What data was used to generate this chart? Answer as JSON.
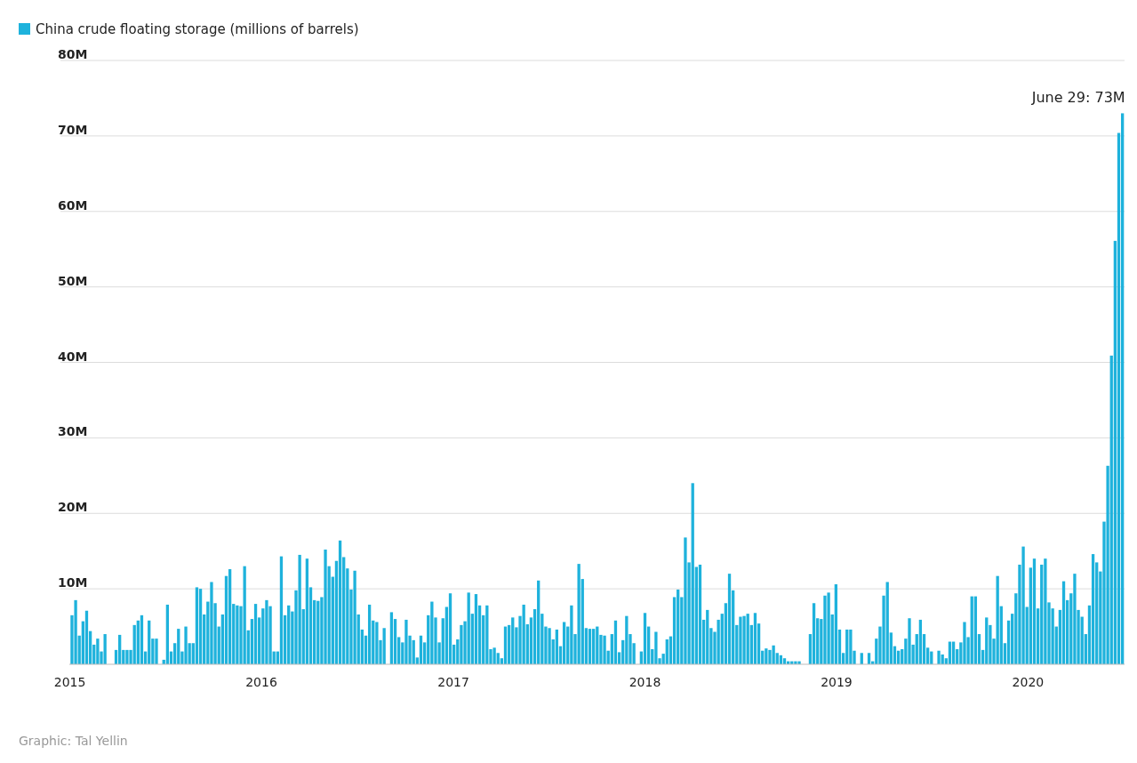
{
  "chart_data": {
    "type": "bar",
    "legend": "top left",
    "grid": "y",
    "x": [
      "2015-01-05",
      "2015-01-12",
      "2015-01-19",
      "2015-01-26",
      "2015-02-02",
      "2015-02-09",
      "2015-02-16",
      "2015-02-23",
      "2015-03-02",
      "2015-03-09",
      "2015-03-16",
      "2015-03-23",
      "2015-03-30",
      "2015-04-06",
      "2015-04-13",
      "2015-04-20",
      "2015-04-27",
      "2015-05-04",
      "2015-05-11",
      "2015-05-18",
      "2015-05-25",
      "2015-06-01",
      "2015-06-08",
      "2015-06-15",
      "2015-06-22",
      "2015-06-29",
      "2015-07-06",
      "2015-07-13",
      "2015-07-20",
      "2015-07-27",
      "2015-08-03",
      "2015-08-10",
      "2015-08-17",
      "2015-08-24",
      "2015-08-31",
      "2015-09-07",
      "2015-09-14",
      "2015-09-21",
      "2015-09-28",
      "2015-10-05",
      "2015-10-12",
      "2015-10-19",
      "2015-10-26",
      "2015-11-02",
      "2015-11-09",
      "2015-11-16",
      "2015-11-23",
      "2015-11-30",
      "2015-12-07",
      "2015-12-14",
      "2015-12-21",
      "2015-12-28",
      "2016-01-04",
      "2016-01-11",
      "2016-01-18",
      "2016-01-25",
      "2016-02-01",
      "2016-02-08",
      "2016-02-15",
      "2016-02-22",
      "2016-02-29",
      "2016-03-07",
      "2016-03-14",
      "2016-03-21",
      "2016-03-28",
      "2016-04-04",
      "2016-04-11",
      "2016-04-18",
      "2016-04-25",
      "2016-05-02",
      "2016-05-09",
      "2016-05-16",
      "2016-05-23",
      "2016-05-30",
      "2016-06-06",
      "2016-06-13",
      "2016-06-20",
      "2016-06-27",
      "2016-07-04",
      "2016-07-11",
      "2016-07-18",
      "2016-07-25",
      "2016-08-01",
      "2016-08-08",
      "2016-08-15",
      "2016-08-22",
      "2016-08-29",
      "2016-09-05",
      "2016-09-12",
      "2016-09-19",
      "2016-09-26",
      "2016-10-03",
      "2016-10-10",
      "2016-10-17",
      "2016-10-24",
      "2016-10-31",
      "2016-11-07",
      "2016-11-14",
      "2016-11-21",
      "2016-11-28",
      "2016-12-05",
      "2016-12-12",
      "2016-12-19",
      "2016-12-26",
      "2017-01-02",
      "2017-01-09",
      "2017-01-16",
      "2017-01-23",
      "2017-01-30",
      "2017-02-06",
      "2017-02-13",
      "2017-02-20",
      "2017-02-27",
      "2017-03-06",
      "2017-03-13",
      "2017-03-20",
      "2017-03-27",
      "2017-04-03",
      "2017-04-10",
      "2017-04-17",
      "2017-04-24",
      "2017-05-01",
      "2017-05-08",
      "2017-05-15",
      "2017-05-22",
      "2017-05-29",
      "2017-06-05",
      "2017-06-12",
      "2017-06-19",
      "2017-06-26",
      "2017-07-03",
      "2017-07-10",
      "2017-07-17",
      "2017-07-24",
      "2017-07-31",
      "2017-08-07",
      "2017-08-14",
      "2017-08-21",
      "2017-08-28",
      "2017-09-04",
      "2017-09-11",
      "2017-09-18",
      "2017-09-25",
      "2017-10-02",
      "2017-10-09",
      "2017-10-16",
      "2017-10-23",
      "2017-10-30",
      "2017-11-06",
      "2017-11-13",
      "2017-11-20",
      "2017-11-27",
      "2017-12-04",
      "2017-12-11",
      "2017-12-18",
      "2017-12-25",
      "2018-01-01",
      "2018-01-08",
      "2018-01-15",
      "2018-01-22",
      "2018-01-29",
      "2018-02-05",
      "2018-02-12",
      "2018-02-19",
      "2018-02-26",
      "2018-03-05",
      "2018-03-12",
      "2018-03-19",
      "2018-03-26",
      "2018-04-02",
      "2018-04-09",
      "2018-04-16",
      "2018-04-23",
      "2018-04-30",
      "2018-05-07",
      "2018-05-14",
      "2018-05-21",
      "2018-05-28",
      "2018-06-04",
      "2018-06-11",
      "2018-06-18",
      "2018-06-25",
      "2018-07-02",
      "2018-07-09",
      "2018-07-16",
      "2018-07-23",
      "2018-07-30",
      "2018-08-06",
      "2018-08-13",
      "2018-08-20",
      "2018-08-27",
      "2018-09-03",
      "2018-09-10",
      "2018-09-17",
      "2018-09-24",
      "2018-10-01",
      "2018-10-08",
      "2018-10-15",
      "2018-10-22",
      "2018-10-29",
      "2018-11-05",
      "2018-11-12",
      "2018-11-19",
      "2018-11-26",
      "2018-12-03",
      "2018-12-10",
      "2018-12-17",
      "2018-12-24",
      "2018-12-31",
      "2019-01-07",
      "2019-01-14",
      "2019-01-21",
      "2019-01-28",
      "2019-02-04",
      "2019-02-11",
      "2019-02-18",
      "2019-02-25",
      "2019-03-04",
      "2019-03-11",
      "2019-03-18",
      "2019-03-25",
      "2019-04-01",
      "2019-04-08",
      "2019-04-15",
      "2019-04-22",
      "2019-04-29",
      "2019-05-06",
      "2019-05-13",
      "2019-05-20",
      "2019-05-27",
      "2019-06-03",
      "2019-06-10",
      "2019-06-17",
      "2019-06-24",
      "2019-07-01",
      "2019-07-08",
      "2019-07-15",
      "2019-07-22",
      "2019-07-29",
      "2019-08-05",
      "2019-08-12",
      "2019-08-19",
      "2019-08-26",
      "2019-09-02",
      "2019-09-09",
      "2019-09-16",
      "2019-09-23",
      "2019-09-30",
      "2019-10-07",
      "2019-10-14",
      "2019-10-21",
      "2019-10-28",
      "2019-11-04",
      "2019-11-11",
      "2019-11-18",
      "2019-11-25",
      "2019-12-02",
      "2019-12-09",
      "2019-12-16",
      "2019-12-23",
      "2019-12-30",
      "2020-01-06",
      "2020-01-13",
      "2020-01-20",
      "2020-01-27",
      "2020-02-03",
      "2020-02-10",
      "2020-02-17",
      "2020-02-24",
      "2020-03-02",
      "2020-03-09",
      "2020-03-16",
      "2020-03-23",
      "2020-03-30",
      "2020-04-06",
      "2020-04-13",
      "2020-04-20",
      "2020-04-27",
      "2020-05-04",
      "2020-05-11",
      "2020-05-18",
      "2020-05-25",
      "2020-06-01",
      "2020-06-08",
      "2020-06-15",
      "2020-06-22",
      "2020-06-29"
    ],
    "series": [
      {
        "name": "China crude floating storage (millions of barrels)",
        "color": "#1eb2dc",
        "values": [
          6.5,
          8.5,
          3.8,
          5.7,
          7.1,
          4.4,
          2.6,
          3.4,
          1.7,
          4.0,
          0,
          0,
          1.9,
          3.9,
          1.9,
          1.9,
          1.9,
          5.2,
          5.8,
          6.5,
          1.7,
          5.8,
          3.4,
          3.4,
          0,
          0.6,
          7.9,
          1.7,
          2.8,
          4.7,
          1.7,
          5.0,
          2.8,
          2.8,
          10.2,
          10.0,
          6.6,
          8.3,
          10.9,
          8.1,
          5.0,
          6.6,
          11.7,
          12.6,
          8.0,
          7.8,
          7.7,
          13.0,
          4.5,
          6.0,
          8.0,
          6.2,
          7.4,
          8.5,
          7.7,
          1.7,
          1.7,
          14.3,
          6.5,
          7.8,
          7.0,
          9.8,
          14.5,
          7.3,
          14.0,
          10.2,
          8.5,
          8.4,
          8.9,
          15.2,
          13.0,
          11.6,
          13.7,
          16.4,
          14.2,
          12.7,
          9.9,
          12.4,
          6.6,
          4.6,
          3.8,
          7.9,
          5.8,
          5.6,
          3.2,
          4.8,
          0,
          6.9,
          6.0,
          3.6,
          2.9,
          5.9,
          3.8,
          3.2,
          0.9,
          3.8,
          2.9,
          6.5,
          8.3,
          6.2,
          2.9,
          6.1,
          7.6,
          9.4,
          2.6,
          3.3,
          5.2,
          5.7,
          9.5,
          6.7,
          9.3,
          7.8,
          6.5,
          7.8,
          2.0,
          2.2,
          1.5,
          0.8,
          5.0,
          5.2,
          6.2,
          4.9,
          6.4,
          7.9,
          5.3,
          6.2,
          7.3,
          11.1,
          6.7,
          5.0,
          4.8,
          3.3,
          4.6,
          2.4,
          5.6,
          5.0,
          7.8,
          4.0,
          13.3,
          11.3,
          4.8,
          4.7,
          4.7,
          5.0,
          3.9,
          3.8,
          1.8,
          4.0,
          5.8,
          1.6,
          3.2,
          6.4,
          4.0,
          2.8,
          0,
          1.7,
          6.8,
          5.0,
          2.0,
          4.3,
          0.8,
          1.4,
          3.3,
          3.7,
          8.9,
          9.9,
          8.9,
          16.8,
          13.5,
          24.0,
          12.9,
          13.2,
          5.9,
          7.2,
          4.8,
          4.3,
          5.9,
          6.7,
          8.1,
          12.0,
          9.8,
          5.2,
          6.3,
          6.4,
          6.7,
          5.2,
          6.8,
          5.4,
          1.8,
          2.1,
          1.9,
          2.5,
          1.5,
          1.2,
          0.8,
          0.4,
          0.4,
          0.4,
          0.4,
          0,
          0,
          4.0,
          8.1,
          6.1,
          6.0,
          9.1,
          9.5,
          6.6,
          10.6,
          4.6,
          1.5,
          4.6,
          4.6,
          1.8,
          0,
          1.5,
          0,
          1.5,
          0.4,
          3.4,
          5.0,
          9.1,
          10.9,
          4.2,
          2.4,
          1.8,
          2.0,
          3.4,
          6.1,
          2.6,
          4.0,
          5.9,
          4.0,
          2.2,
          1.7,
          0,
          1.8,
          1.3,
          0.8,
          3.0,
          3.0,
          2.0,
          2.9,
          5.6,
          3.6,
          9.0,
          9.0,
          4.0,
          1.9,
          6.2,
          5.2,
          3.4,
          11.7,
          7.7,
          2.8,
          5.8,
          6.7,
          9.4,
          13.2,
          15.6,
          7.6,
          12.8,
          14.0,
          7.4,
          13.2,
          14.0,
          8.2,
          7.4,
          5.0,
          7.2,
          11.0,
          8.5,
          9.4,
          12.0,
          7.2,
          6.3,
          4.0,
          7.8,
          14.6,
          13.5,
          12.3,
          18.9,
          26.3,
          40.9,
          56.1,
          70.4,
          73
        ]
      }
    ],
    "xlim": [
      "2014-12-31",
      "2020-07-03"
    ],
    "xticks": [
      "2015",
      "2016",
      "2017",
      "2018",
      "2019",
      "2020"
    ],
    "ylim": [
      0,
      80
    ],
    "yticks": [
      {
        "value": 10,
        "label": "10M"
      },
      {
        "value": 20,
        "label": "20M"
      },
      {
        "value": 30,
        "label": "30M"
      },
      {
        "value": 40,
        "label": "40M"
      },
      {
        "value": 50,
        "label": "50M"
      },
      {
        "value": 60,
        "label": "60M"
      },
      {
        "value": 70,
        "label": "70M"
      },
      {
        "value": 80,
        "label": "80M"
      }
    ],
    "annotations": [
      {
        "text": "June 29: 73M",
        "x": "2020-06-29",
        "y": 73
      },
      "Graphic: Tal Yellin"
    ]
  }
}
